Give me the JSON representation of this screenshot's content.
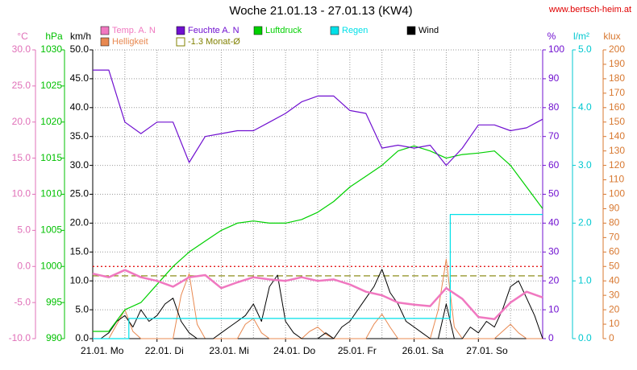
{
  "chart_data": {
    "type": "multi_axis_line",
    "title": "Woche 21.01.13 - 27.01.13 (KW4)",
    "source": "www.bertsch-heim.at",
    "xlim": [
      0,
      168
    ],
    "xticks": [
      {
        "value": 0,
        "label": "21.01. Mo"
      },
      {
        "value": 24,
        "label": "22.01. Di"
      },
      {
        "value": 48,
        "label": "23.01. Mi"
      },
      {
        "value": 72,
        "label": "24.01. Do"
      },
      {
        "value": 96,
        "label": "25.01. Fr"
      },
      {
        "value": 120,
        "label": "26.01. Sa"
      },
      {
        "value": 144,
        "label": "27.01. So"
      }
    ],
    "x_gridlines": [
      0,
      12,
      24,
      36,
      48,
      60,
      72,
      84,
      96,
      108,
      120,
      132,
      144,
      156,
      168
    ],
    "grid": true,
    "axes": [
      {
        "unit": "°C",
        "side": "left",
        "color": "#e070b8",
        "lim": [
          -10,
          30
        ],
        "ticks": [
          {
            "value": -10,
            "label": "-10.0"
          },
          {
            "value": -5,
            "label": "-5.0"
          },
          {
            "value": 0,
            "label": "0.0"
          },
          {
            "value": 5,
            "label": "5.0"
          },
          {
            "value": 10,
            "label": "10.0"
          },
          {
            "value": 15,
            "label": "15.0"
          },
          {
            "value": 20,
            "label": "20.0"
          },
          {
            "value": 25,
            "label": "25.0"
          },
          {
            "value": 30,
            "label": "30.0"
          }
        ]
      },
      {
        "unit": "hPa",
        "side": "left",
        "color": "#00c000",
        "lim": [
          990,
          1030
        ],
        "ticks": [
          990,
          995,
          1000,
          1005,
          1010,
          1015,
          1020,
          1025,
          1030
        ]
      },
      {
        "unit": "km/h",
        "side": "left",
        "color": "#000000",
        "lim": [
          0,
          50
        ],
        "ticks": [
          {
            "value": 0,
            "label": "0.0"
          },
          {
            "value": 5,
            "label": "5.0"
          },
          {
            "value": 10,
            "label": "10.0"
          },
          {
            "value": 15,
            "label": "15.0"
          },
          {
            "value": 20,
            "label": "20.0"
          },
          {
            "value": 25,
            "label": "25.0"
          },
          {
            "value": 30,
            "label": "30.0"
          },
          {
            "value": 35,
            "label": "35.0"
          },
          {
            "value": 40,
            "label": "40.0"
          },
          {
            "value": 45,
            "label": "45.0"
          },
          {
            "value": 50,
            "label": "50.0"
          }
        ]
      },
      {
        "unit": "%",
        "side": "right",
        "color": "#7010d0",
        "lim": [
          0,
          100
        ],
        "ticks": [
          0,
          10,
          20,
          30,
          40,
          50,
          60,
          70,
          80,
          90,
          100
        ]
      },
      {
        "unit": "l/m²",
        "side": "right",
        "color": "#00c8d0",
        "lim": [
          0,
          5
        ],
        "ticks": [
          {
            "value": 0,
            "label": "0.0"
          },
          {
            "value": 1,
            "label": "1.0"
          },
          {
            "value": 2,
            "label": "2.0"
          },
          {
            "value": 3,
            "label": "3.0"
          },
          {
            "value": 4,
            "label": "4.0"
          },
          {
            "value": 5,
            "label": "5.0"
          }
        ]
      },
      {
        "unit": "klux",
        "side": "right",
        "color": "#d87830",
        "lim": [
          0,
          200
        ],
        "ticks": [
          0,
          10,
          20,
          30,
          40,
          50,
          60,
          70,
          80,
          90,
          100,
          110,
          120,
          130,
          140,
          150,
          160,
          170,
          180,
          190,
          200
        ]
      }
    ],
    "reference_lines": [
      {
        "name": "-1.3 Monat-Ø",
        "value": -1.3,
        "axis": 0,
        "color": "#808000",
        "style": "dashed"
      },
      {
        "value": 0,
        "axis": 0,
        "color": "#e00000",
        "style": "dotted"
      }
    ],
    "series": [
      {
        "name": "Temp. A. N",
        "color": "#f078c0",
        "axis": 0,
        "width": 2.5,
        "x": [
          0,
          6,
          12,
          18,
          24,
          30,
          36,
          42,
          48,
          54,
          60,
          66,
          72,
          78,
          84,
          90,
          96,
          102,
          108,
          114,
          120,
          126,
          132,
          138,
          144,
          150,
          156,
          162,
          168
        ],
        "values": [
          -1,
          -1.5,
          -0.5,
          -1.5,
          -2,
          -2.8,
          -1.5,
          -1.2,
          -3,
          -2.2,
          -1.5,
          -1.8,
          -2,
          -1.5,
          -2,
          -1.8,
          -2.5,
          -3.5,
          -4,
          -5,
          -5.3,
          -5.5,
          -3,
          -4.5,
          -7,
          -7.3,
          -5,
          -3.5,
          -4.3
        ]
      },
      {
        "name": "Feuchte A. N",
        "color": "#7010d0",
        "axis": 3,
        "width": 1.2,
        "x": [
          0,
          6,
          12,
          18,
          24,
          30,
          36,
          42,
          48,
          54,
          60,
          66,
          72,
          78,
          84,
          90,
          96,
          102,
          108,
          114,
          120,
          126,
          132,
          138,
          144,
          150,
          156,
          162,
          168
        ],
        "values": [
          93,
          93,
          75,
          71,
          75,
          75,
          61,
          70,
          71,
          72,
          72,
          75,
          78,
          82,
          84,
          84,
          79,
          78,
          66,
          67,
          66,
          67,
          60,
          66,
          74,
          74,
          72,
          73,
          76
        ]
      },
      {
        "name": "Luftdruck",
        "color": "#00d000",
        "axis": 1,
        "width": 1.2,
        "x": [
          0,
          6,
          12,
          18,
          24,
          30,
          36,
          42,
          48,
          54,
          60,
          66,
          72,
          78,
          84,
          90,
          96,
          102,
          108,
          114,
          120,
          126,
          132,
          138,
          144,
          150,
          156,
          162,
          168
        ],
        "values": [
          991,
          991,
          994,
          995,
          997.5,
          1000,
          1002,
          1003.5,
          1005,
          1006,
          1006.3,
          1006,
          1006,
          1006.5,
          1007.5,
          1009,
          1011,
          1012.5,
          1014,
          1016,
          1016.7,
          1016,
          1015,
          1015.5,
          1015.7,
          1016,
          1014,
          1011,
          1008
        ]
      },
      {
        "name": "Regen",
        "color": "#00e0e8",
        "axis": 4,
        "width": 1.2,
        "x": [
          0,
          13.5,
          13.5,
          133.5,
          133.5,
          168
        ],
        "values": [
          0,
          0,
          0.35,
          0.35,
          2.15,
          2.15
        ]
      },
      {
        "name": "Wind",
        "color": "#000000",
        "axis": 2,
        "width": 1,
        "x": [
          0,
          3,
          6,
          9,
          12,
          15,
          18,
          21,
          24,
          27,
          30,
          33,
          36,
          39,
          42,
          45,
          48,
          51,
          54,
          57,
          60,
          63,
          66,
          69,
          72,
          75,
          78,
          81,
          84,
          87,
          90,
          93,
          96,
          99,
          102,
          105,
          108,
          111,
          114,
          117,
          120,
          123,
          126,
          129,
          132,
          135,
          138,
          141,
          144,
          147,
          150,
          153,
          156,
          159,
          162,
          165,
          168
        ],
        "values": [
          0,
          0,
          1,
          3,
          4,
          2,
          5,
          3,
          4,
          6,
          7,
          3,
          1,
          0,
          0,
          0,
          1,
          2,
          3,
          4,
          6,
          3,
          9,
          11,
          3,
          1,
          0,
          0,
          0,
          1,
          0,
          2,
          3,
          5,
          7,
          9,
          12,
          8,
          6,
          3,
          2,
          1,
          0,
          0,
          6,
          0,
          0,
          2,
          1,
          3,
          2,
          5,
          9,
          10,
          7,
          4,
          0
        ]
      },
      {
        "name": "Helligkeit",
        "color": "#e88850",
        "axis": 5,
        "width": 1,
        "x": [
          0,
          3,
          6,
          9,
          12,
          15,
          18,
          21,
          24,
          27,
          30,
          33,
          36,
          39,
          42,
          45,
          48,
          51,
          54,
          57,
          60,
          63,
          66,
          69,
          72,
          75,
          78,
          81,
          84,
          87,
          90,
          93,
          96,
          99,
          102,
          105,
          108,
          111,
          114,
          117,
          120,
          123,
          126,
          129,
          132,
          135,
          138,
          141,
          144,
          147,
          150,
          153,
          156,
          159,
          162,
          165,
          168
        ],
        "values": [
          0,
          0,
          0,
          10,
          20,
          5,
          0,
          0,
          0,
          0,
          0,
          30,
          45,
          10,
          0,
          0,
          0,
          0,
          0,
          10,
          14,
          4,
          0,
          0,
          0,
          0,
          0,
          5,
          8,
          3,
          0,
          0,
          0,
          0,
          0,
          10,
          17,
          8,
          0,
          0,
          0,
          0,
          0,
          20,
          55,
          8,
          0,
          0,
          0,
          0,
          0,
          5,
          10,
          4,
          0,
          0,
          0
        ]
      }
    ]
  }
}
